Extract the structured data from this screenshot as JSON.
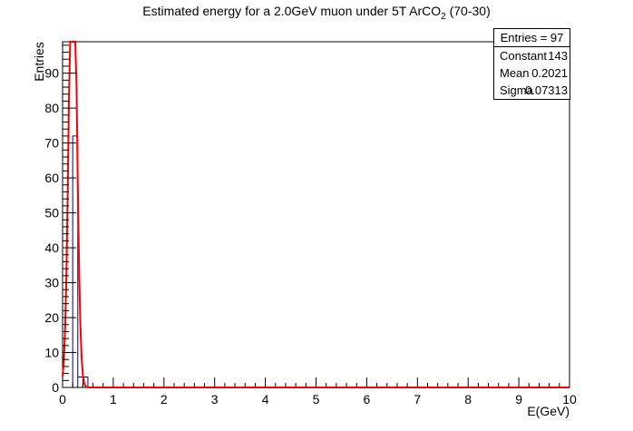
{
  "chart_data": {
    "type": "histogram",
    "title_main": "Estimated energy for a 2.0GeV muon under 5T ArCO",
    "title_sub": "2",
    "title_tail": " (70-30)",
    "xlabel": "E(GeV)",
    "ylabel": "Entries",
    "xlim": [
      0,
      10
    ],
    "ylim": [
      0,
      99
    ],
    "x_ticks": [
      "0",
      "1",
      "2",
      "3",
      "4",
      "5",
      "6",
      "7",
      "8",
      "9",
      "10"
    ],
    "y_ticks": [
      "0",
      "10",
      "20",
      "30",
      "40",
      "50",
      "60",
      "70",
      "80",
      "90"
    ],
    "bin_width": 0.1,
    "bins": [
      {
        "x0": 0.2,
        "x1": 0.3,
        "count": 72
      },
      {
        "x0": 0.3,
        "x1": 0.4,
        "count": 3
      },
      {
        "x0": 0.4,
        "x1": 0.5,
        "count": 3
      }
    ],
    "histogram_color": "#000080",
    "fit": {
      "function": "gaus",
      "color": "#ff0000",
      "constant": 143,
      "mean": 0.2021,
      "sigma": 0.07313
    },
    "stats_box": {
      "header": "Entries = 97",
      "rows": [
        {
          "key": "Constant",
          "value": "143"
        },
        {
          "key": "Mean",
          "value": "0.2021"
        },
        {
          "key": "Sigma",
          "value": "0.07313"
        }
      ]
    },
    "grid": false
  }
}
